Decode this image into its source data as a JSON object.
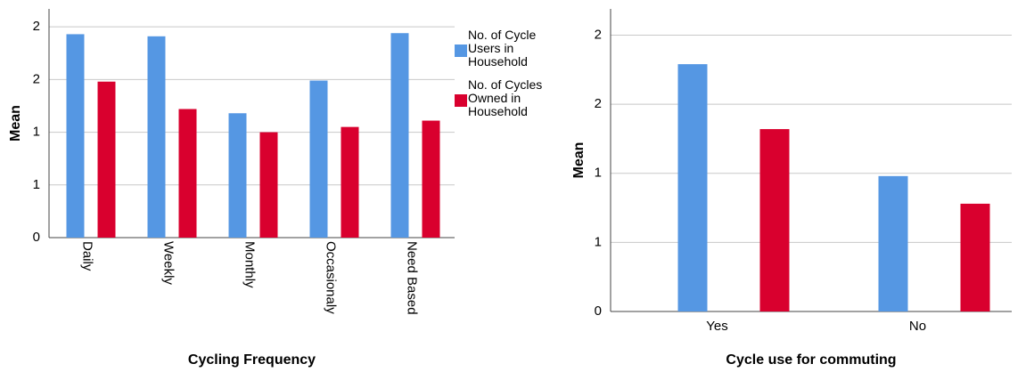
{
  "chart_data": [
    {
      "type": "bar",
      "x_label": "Cycling Frequency",
      "y_label": "Mean",
      "categories": [
        "Daily",
        "Weekly",
        "Monthly",
        "Occasionaly",
        "Need Based"
      ],
      "series": [
        {
          "name": "No. of Cycle Users in Household",
          "color": "#5597e3",
          "values": [
            1.93,
            1.91,
            1.18,
            1.49,
            1.94
          ]
        },
        {
          "name": "No. of Cycles Owned in Household",
          "color": "#d9002e",
          "values": [
            1.48,
            1.22,
            1.0,
            1.05,
            1.11
          ]
        }
      ],
      "ylim": [
        0,
        2.17
      ],
      "yticks": [
        0,
        {
          "value": 0.5,
          "label": "1"
        },
        1,
        {
          "value": 1.5,
          "label": "2"
        },
        2
      ],
      "grid": true,
      "legend": "right"
    },
    {
      "type": "bar",
      "x_label": "Cycle use for commuting",
      "y_label": "Mean",
      "categories": [
        "Yes",
        "No"
      ],
      "series": [
        {
          "color": "#5597e3",
          "values": [
            1.79,
            0.98
          ]
        },
        {
          "color": "#d9002e",
          "values": [
            1.32,
            0.78
          ]
        }
      ],
      "ylim": [
        0,
        2.19
      ],
      "yticks": [
        0,
        {
          "value": 0.5,
          "label": "1"
        },
        1,
        {
          "value": 1.5,
          "label": "2"
        },
        2
      ],
      "grid": true
    }
  ]
}
